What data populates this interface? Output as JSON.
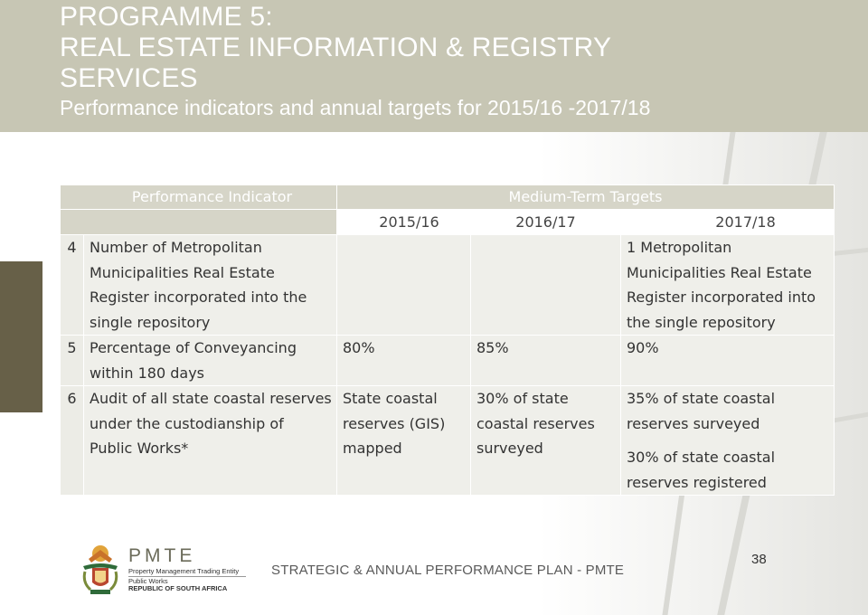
{
  "header": {
    "title_lines": [
      "PROGRAMME 5:",
      "REAL ESTATE INFORMATION & REGISTRY",
      "SERVICES"
    ],
    "subtitle": "Performance indicators and annual targets for 2015/16 -2017/18"
  },
  "table": {
    "col_indicator": "Performance Indicator",
    "col_targets": "Medium-Term Targets",
    "years": [
      "2015/16",
      "2016/17",
      "2017/18"
    ],
    "rows": [
      {
        "num": "4",
        "indicator_lines": [
          "Number of  Metropolitan",
          "Municipalities Real Estate",
          "Register incorporated into the",
          "single repository"
        ],
        "y2015_lines": [],
        "y2016_lines": [],
        "y2017_lines": [
          "1 Metropolitan",
          "Municipalities Real Estate",
          "Register incorporated into",
          "the single repository"
        ]
      },
      {
        "num": "5",
        "indicator_lines": [
          "Percentage of Conveyancing",
          "within 180 days"
        ],
        "y2015_lines": [
          "80%"
        ],
        "y2016_lines": [
          "85%"
        ],
        "y2017_lines": [
          "90%"
        ]
      },
      {
        "num": "6",
        "indicator_lines": [
          "Audit of all state coastal reserves",
          "under  the custodianship of",
          "Public Works*"
        ],
        "y2015_lines": [
          "State coastal",
          "reserves  (GIS)",
          "mapped"
        ],
        "y2016_lines": [
          "30% of state",
          "coastal reserves",
          "surveyed"
        ],
        "y2017_lines": [
          "35% of state coastal",
          "reserves surveyed"
        ],
        "y2017_extra_lines": [
          "30% of state coastal",
          "reserves registered"
        ]
      }
    ]
  },
  "footer": {
    "logo_name": "PMTE",
    "logo_lines": [
      "Property Management Trading Entity",
      "Public Works",
      "REPUBLIC OF SOUTH AFRICA"
    ],
    "plan_text": "STRATEGIC & ANNUAL PERFORMANCE PLAN - PMTE",
    "page_number": "38"
  },
  "colors": {
    "header_band": "#c7c6b4",
    "table_header": "#d6d5c8",
    "table_row": "#efefea",
    "side_block": "#676048"
  }
}
